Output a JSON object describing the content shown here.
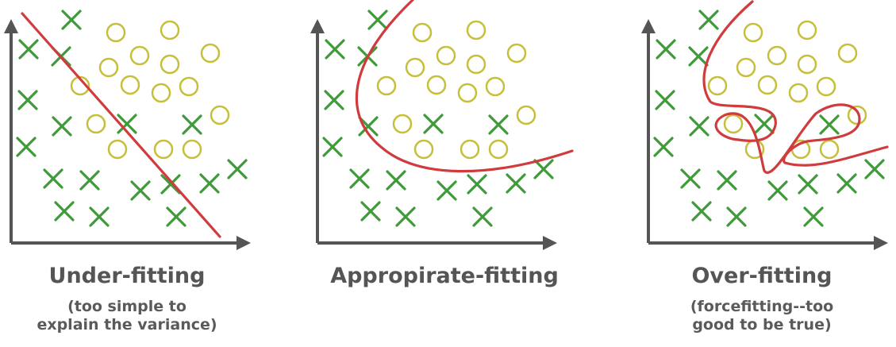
{
  "colors": {
    "axis": "#555555",
    "cross": "#3f9a3a",
    "circle": "#c6bf3a",
    "boundary": "#d03b3e",
    "text": "#555555"
  },
  "panels": [
    {
      "name": "under-fitting",
      "title": "Under-fitting",
      "subtitle_line1": "(too simple to",
      "subtitle_line2": "explain the variance)"
    },
    {
      "name": "appropriate-fitting",
      "title": "Appropirate-fitting",
      "subtitle_line1": "",
      "subtitle_line2": ""
    },
    {
      "name": "over-fitting",
      "title": "Over-fitting",
      "subtitle_line1": "(forcefitting--too",
      "subtitle_line2": "good to be true)"
    }
  ],
  "icons": {
    "cross_marker": "cross-icon",
    "circle_marker": "circle-icon",
    "axis_arrow": "arrow-icon"
  }
}
